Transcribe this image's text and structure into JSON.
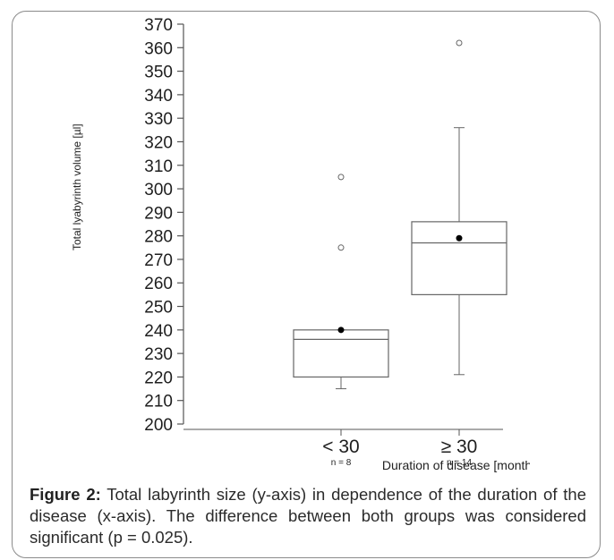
{
  "chart_data": {
    "type": "box",
    "ylabel": "Total lyabyrinth volume [µl]",
    "xlabel": "Duration of disease [months]",
    "ylim": [
      200,
      370
    ],
    "yticks": [
      200,
      210,
      220,
      230,
      240,
      250,
      260,
      270,
      280,
      290,
      300,
      310,
      320,
      330,
      340,
      350,
      360,
      370
    ],
    "groups": [
      {
        "label": "< 30",
        "n_label": "n = 8",
        "whisker_low": 215,
        "q1": 220,
        "median": 236,
        "q3": 240,
        "whisker_high": 240,
        "mean": 240,
        "outliers": [
          275,
          305
        ]
      },
      {
        "label": "≥ 30",
        "n_label": "n = 14",
        "whisker_low": 221,
        "q1": 255,
        "median": 277,
        "q3": 286,
        "whisker_high": 326,
        "mean": 279,
        "outliers": [
          362
        ]
      }
    ],
    "colors": {
      "box": "#666666",
      "axis": "#555555",
      "mean": "#000000"
    }
  },
  "caption": {
    "label": "Figure 2:",
    "text": "Total labyrinth size (y-axis) in dependence of the duration of the disease (x-axis). The difference between both groups was considered significant (p = 0.025)."
  }
}
